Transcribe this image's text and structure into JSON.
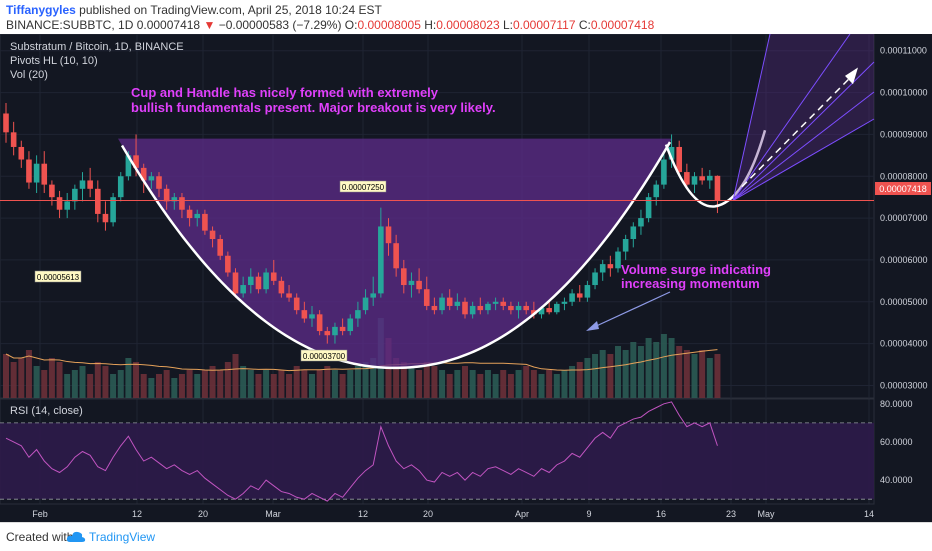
{
  "header": {
    "author": "Tiffanygyles",
    "published": "published on TradingView.com, April 25, 2018 10:24 EST",
    "symbol": "BINANCE:SUBBTC, 1D",
    "last": "0.00007418",
    "change_arrow": "▼",
    "change": "−0.00000583 (−7.29%)",
    "o_label": "O:",
    "o": "0.00008005",
    "h_label": "H:",
    "h": "0.00008023",
    "l_label": "L:",
    "l": "0.00007117",
    "c_label": "C:",
    "c": "0.00007418"
  },
  "legend": {
    "title": "Substratum / Bitcoin, 1D, BINANCE",
    "pivots": "Pivots HL (10, 10)",
    "vol": "Vol (20)"
  },
  "annotations": {
    "cup_line1": "Cup and Handle has nicely formed with extremely",
    "cup_line2": "bullish fundamentals present. Major breakout is very likely.",
    "vol_line1": "Volume surge indicating",
    "vol_line2": "increasing momentum",
    "pivot_high": "0.00007250",
    "pivot_low1": "0.00005613",
    "pivot_low2": "0.00003700",
    "price_tag": "0.00007418"
  },
  "rsi": {
    "label": "RSI (14, close)",
    "ticks": [
      "80.0000",
      "60.0000",
      "40.0000"
    ]
  },
  "footer": {
    "created": "Created with",
    "brand": "TradingView"
  },
  "colors": {
    "bg": "#131722",
    "up": "#26a69a",
    "down": "#ef5350",
    "purple": "#5b2a86",
    "magenta": "#e040fb",
    "fan": "#7c4dff"
  },
  "chart_data": {
    "type": "candlestick",
    "x_tick_labels": [
      "Feb",
      "12",
      "20",
      "Mar",
      "12",
      "20",
      "Apr",
      "9",
      "16",
      "23",
      "May",
      "14"
    ],
    "y_tick_labels": [
      "0.00011000",
      "0.00010000",
      "0.00009000",
      "0.00008000",
      "0.00007000",
      "0.00006000",
      "0.00005000",
      "0.00004000",
      "0.00003000"
    ],
    "ylim": [
      2.7e-05,
      0.000114
    ],
    "rsi_ylim": [
      28,
      82
    ],
    "candles": [
      [
        9.5e-05,
        9.75e-05,
        8.8e-05,
        9.05e-05
      ],
      [
        9.05e-05,
        9.3e-05,
        8.5e-05,
        8.7e-05
      ],
      [
        8.7e-05,
        8.85e-05,
        8.2e-05,
        8.4e-05
      ],
      [
        8.4e-05,
        8.6e-05,
        7.7e-05,
        7.85e-05
      ],
      [
        7.85e-05,
        8.5e-05,
        7.6e-05,
        8.3e-05
      ],
      [
        8.3e-05,
        8.6e-05,
        7.6e-05,
        7.8e-05
      ],
      [
        7.8e-05,
        7.9e-05,
        7.3e-05,
        7.5e-05
      ],
      [
        7.5e-05,
        7.65e-05,
        7e-05,
        7.2e-05
      ],
      [
        7.2e-05,
        7.6e-05,
        7e-05,
        7.4e-05
      ],
      [
        7.4e-05,
        7.8e-05,
        7.2e-05,
        7.7e-05
      ],
      [
        7.7e-05,
        8.1e-05,
        7.4e-05,
        7.9e-05
      ],
      [
        7.9e-05,
        8.2e-05,
        7.5e-05,
        7.7e-05
      ],
      [
        7.7e-05,
        7.9e-05,
        6.9e-05,
        7.1e-05
      ],
      [
        7.1e-05,
        7.4e-05,
        6.7e-05,
        6.9e-05
      ],
      [
        6.9e-05,
        7.6e-05,
        6.8e-05,
        7.5e-05
      ],
      [
        7.5e-05,
        8.1e-05,
        7.4e-05,
        8e-05
      ],
      [
        8e-05,
        8.6e-05,
        7.9e-05,
        8.5e-05
      ],
      [
        8.5e-05,
        9e-05,
        8e-05,
        8.2e-05
      ],
      [
        8.2e-05,
        8.3e-05,
        7.6e-05,
        7.9e-05
      ],
      [
        7.9e-05,
        8.1e-05,
        7.7e-05,
        8e-05
      ],
      [
        8e-05,
        8.1e-05,
        7.5e-05,
        7.7e-05
      ],
      [
        7.7e-05,
        7.8e-05,
        7.2e-05,
        7.4e-05
      ],
      [
        7.4e-05,
        7.6e-05,
        7.2e-05,
        7.5e-05
      ],
      [
        7.5e-05,
        7.6e-05,
        7e-05,
        7.2e-05
      ],
      [
        7.2e-05,
        7.3e-05,
        6.8e-05,
        7e-05
      ],
      [
        7e-05,
        7.2e-05,
        6.8e-05,
        7.1e-05
      ],
      [
        7.1e-05,
        7.2e-05,
        6.6e-05,
        6.7e-05
      ],
      [
        6.7e-05,
        6.8e-05,
        6.3e-05,
        6.5e-05
      ],
      [
        6.5e-05,
        6.6e-05,
        6e-05,
        6.1e-05
      ],
      [
        6.1e-05,
        6.2e-05,
        5.6e-05,
        5.7e-05
      ],
      [
        5.7e-05,
        5.8e-05,
        5.1e-05,
        5.2e-05
      ],
      [
        5.2e-05,
        5.6e-05,
        5.1e-05,
        5.4e-05
      ],
      [
        5.4e-05,
        5.8e-05,
        5.2e-05,
        5.6e-05
      ],
      [
        5.6e-05,
        5.7e-05,
        5.2e-05,
        5.3e-05
      ],
      [
        5.3e-05,
        5.8e-05,
        5.2e-05,
        5.7e-05
      ],
      [
        5.7e-05,
        6e-05,
        5.4e-05,
        5.5e-05
      ],
      [
        5.5e-05,
        5.6e-05,
        5.1e-05,
        5.2e-05
      ],
      [
        5.2e-05,
        5.4e-05,
        5e-05,
        5.1e-05
      ],
      [
        5.1e-05,
        5.2e-05,
        4.7e-05,
        4.8e-05
      ],
      [
        4.8e-05,
        5e-05,
        4.5e-05,
        4.6e-05
      ],
      [
        4.6e-05,
        4.9e-05,
        4.4e-05,
        4.7e-05
      ],
      [
        4.7e-05,
        4.8e-05,
        4.2e-05,
        4.3e-05
      ],
      [
        4.3e-05,
        4.4e-05,
        4e-05,
        4.2e-05
      ],
      [
        4.2e-05,
        4.5e-05,
        4e-05,
        4.4e-05
      ],
      [
        4.4e-05,
        4.6e-05,
        4.2e-05,
        4.3e-05
      ],
      [
        4.3e-05,
        4.7e-05,
        4.2e-05,
        4.6e-05
      ],
      [
        4.6e-05,
        5e-05,
        4.4e-05,
        4.8e-05
      ],
      [
        4.8e-05,
        5.3e-05,
        4.7e-05,
        5.1e-05
      ],
      [
        5.1e-05,
        5.6e-05,
        4.9e-05,
        5.2e-05
      ],
      [
        5.2e-05,
        7.25e-05,
        5.1e-05,
        6.8e-05
      ],
      [
        6.8e-05,
        7e-05,
        6.1e-05,
        6.4e-05
      ],
      [
        6.4e-05,
        6.6e-05,
        5.6e-05,
        5.8e-05
      ],
      [
        5.8e-05,
        6e-05,
        5.2e-05,
        5.4e-05
      ],
      [
        5.4e-05,
        5.7e-05,
        5.1e-05,
        5.5e-05
      ],
      [
        5.5e-05,
        5.8e-05,
        5.2e-05,
        5.3e-05
      ],
      [
        5.3e-05,
        5.6e-05,
        4.8e-05,
        4.9e-05
      ],
      [
        4.9e-05,
        5.1e-05,
        4.7e-05,
        4.8e-05
      ],
      [
        4.8e-05,
        5.2e-05,
        4.7e-05,
        5.1e-05
      ],
      [
        5.1e-05,
        5.3e-05,
        4.8e-05,
        4.9e-05
      ],
      [
        4.9e-05,
        5.2e-05,
        4.8e-05,
        5e-05
      ],
      [
        5e-05,
        5.1e-05,
        4.6e-05,
        4.7e-05
      ],
      [
        4.7e-05,
        5e-05,
        4.6e-05,
        4.9e-05
      ],
      [
        4.9e-05,
        5.1e-05,
        4.7e-05,
        4.8e-05
      ],
      [
        4.8e-05,
        5e-05,
        4.7e-05,
        4.95e-05
      ],
      [
        4.95e-05,
        5.1e-05,
        4.8e-05,
        5e-05
      ],
      [
        5e-05,
        5.1e-05,
        4.8e-05,
        4.9e-05
      ],
      [
        4.9e-05,
        5e-05,
        4.7e-05,
        4.8e-05
      ],
      [
        4.8e-05,
        5e-05,
        4.6e-05,
        4.9e-05
      ],
      [
        4.9e-05,
        5e-05,
        4.7e-05,
        4.8e-05
      ],
      [
        4.8e-05,
        5e-05,
        4.6e-05,
        4.7e-05
      ],
      [
        4.7e-05,
        4.9e-05,
        4.6e-05,
        4.85e-05
      ],
      [
        4.85e-05,
        5e-05,
        4.7e-05,
        4.75e-05
      ],
      [
        4.75e-05,
        5e-05,
        4.7e-05,
        4.95e-05
      ],
      [
        4.95e-05,
        5.1e-05,
        4.8e-05,
        5e-05
      ],
      [
        5e-05,
        5.3e-05,
        4.9e-05,
        5.2e-05
      ],
      [
        5.2e-05,
        5.4e-05,
        5e-05,
        5.1e-05
      ],
      [
        5.1e-05,
        5.5e-05,
        5e-05,
        5.4e-05
      ],
      [
        5.4e-05,
        5.8e-05,
        5.3e-05,
        5.7e-05
      ],
      [
        5.7e-05,
        6e-05,
        5.5e-05,
        5.9e-05
      ],
      [
        5.9e-05,
        6.1e-05,
        5.6e-05,
        5.8e-05
      ],
      [
        5.8e-05,
        6.3e-05,
        5.7e-05,
        6.2e-05
      ],
      [
        6.2e-05,
        6.6e-05,
        6e-05,
        6.5e-05
      ],
      [
        6.5e-05,
        6.9e-05,
        6.3e-05,
        6.8e-05
      ],
      [
        6.8e-05,
        7.2e-05,
        6.6e-05,
        7e-05
      ],
      [
        7e-05,
        7.6e-05,
        6.9e-05,
        7.5e-05
      ],
      [
        7.5e-05,
        7.9e-05,
        7.3e-05,
        7.8e-05
      ],
      [
        7.8e-05,
        8.6e-05,
        7.7e-05,
        8.4e-05
      ],
      [
        8.4e-05,
        9e-05,
        8.2e-05,
        8.7e-05
      ],
      [
        8.7e-05,
        8.85e-05,
        8e-05,
        8.1e-05
      ],
      [
        8.1e-05,
        8.3e-05,
        7.7e-05,
        7.8e-05
      ],
      [
        7.8e-05,
        8.1e-05,
        7.6e-05,
        8e-05
      ],
      [
        8e-05,
        8.2e-05,
        7.8e-05,
        7.9e-05
      ],
      [
        7.9e-05,
        8.15e-05,
        7.7e-05,
        8.01e-05
      ],
      [
        8.01e-05,
        8.02e-05,
        7.12e-05,
        7.42e-05
      ]
    ],
    "volume_ma_note": "",
    "volume_level": [
      0.55,
      0.45,
      0.5,
      0.6,
      0.4,
      0.35,
      0.5,
      0.45,
      0.3,
      0.35,
      0.4,
      0.3,
      0.45,
      0.4,
      0.3,
      0.35,
      0.5,
      0.45,
      0.3,
      0.25,
      0.3,
      0.35,
      0.25,
      0.3,
      0.35,
      0.3,
      0.35,
      0.4,
      0.35,
      0.45,
      0.55,
      0.4,
      0.35,
      0.3,
      0.35,
      0.3,
      0.35,
      0.3,
      0.4,
      0.35,
      0.3,
      0.35,
      0.4,
      0.35,
      0.3,
      0.35,
      0.4,
      0.45,
      0.5,
      1.0,
      0.75,
      0.5,
      0.45,
      0.4,
      0.35,
      0.45,
      0.4,
      0.35,
      0.3,
      0.35,
      0.4,
      0.35,
      0.3,
      0.35,
      0.3,
      0.35,
      0.3,
      0.35,
      0.4,
      0.35,
      0.3,
      0.35,
      0.3,
      0.35,
      0.4,
      0.45,
      0.5,
      0.55,
      0.6,
      0.55,
      0.65,
      0.6,
      0.7,
      0.65,
      0.75,
      0.7,
      0.8,
      0.75,
      0.65,
      0.6,
      0.55,
      0.6,
      0.5,
      0.55
    ],
    "rsi_values": [
      62,
      60,
      58,
      52,
      56,
      50,
      46,
      44,
      47,
      52,
      55,
      53,
      47,
      45,
      52,
      58,
      63,
      56,
      50,
      52,
      49,
      46,
      48,
      45,
      43,
      45,
      41,
      38,
      35,
      32,
      30,
      33,
      37,
      35,
      40,
      37,
      34,
      33,
      31,
      30,
      33,
      31,
      29,
      33,
      31,
      36,
      41,
      45,
      48,
      68,
      58,
      50,
      46,
      48,
      45,
      40,
      39,
      44,
      42,
      44,
      40,
      44,
      42,
      46,
      47,
      45,
      43,
      46,
      44,
      42,
      46,
      44,
      48,
      50,
      54,
      52,
      57,
      62,
      65,
      62,
      68,
      70,
      72,
      73,
      76,
      78,
      80,
      81,
      74,
      68,
      70,
      68,
      70,
      58
    ]
  }
}
